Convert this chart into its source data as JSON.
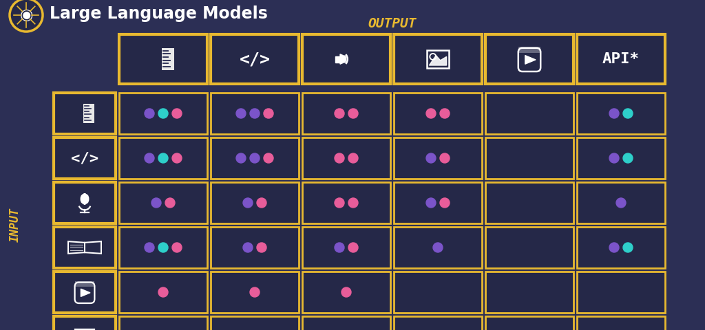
{
  "title": "Large Language Models",
  "output_label": "OUTPUT",
  "input_label": "INPUT",
  "bg_color": "#2c2f55",
  "cell_bg": "#252848",
  "border_color": "#e8b930",
  "title_color": "#ffffff",
  "label_color": "#e8b930",
  "dot_purple": "#7b54c9",
  "dot_pink": "#e85d9a",
  "dot_cyan": "#2ecfca",
  "output_icons": [
    "text",
    "code",
    "audio",
    "image",
    "video",
    "api"
  ],
  "input_icons": [
    "text",
    "code",
    "audio",
    "book",
    "video",
    "image"
  ],
  "grid_rows": 6,
  "grid_cols": 6,
  "dots": {
    "0": {
      "0": [
        "purple",
        "cyan",
        "pink"
      ],
      "1": [
        "purple",
        "purple",
        "pink"
      ],
      "2": [
        "pink",
        "pink"
      ],
      "3": [
        "pink",
        "pink"
      ],
      "4": [],
      "5": [
        "purple",
        "cyan"
      ]
    },
    "1": {
      "0": [
        "purple",
        "cyan",
        "pink"
      ],
      "1": [
        "purple",
        "purple",
        "pink"
      ],
      "2": [
        "pink",
        "pink"
      ],
      "3": [
        "purple",
        "pink"
      ],
      "4": [],
      "5": [
        "purple",
        "cyan"
      ]
    },
    "2": {
      "0": [
        "purple",
        "pink"
      ],
      "1": [
        "purple",
        "pink"
      ],
      "2": [
        "pink",
        "pink"
      ],
      "3": [
        "purple",
        "pink"
      ],
      "4": [],
      "5": [
        "purple"
      ]
    },
    "3": {
      "0": [
        "purple",
        "cyan",
        "pink"
      ],
      "1": [
        "purple",
        "pink"
      ],
      "2": [
        "purple",
        "pink"
      ],
      "3": [
        "purple"
      ],
      "4": [],
      "5": [
        "purple",
        "cyan"
      ]
    },
    "4": {
      "0": [
        "pink"
      ],
      "1": [
        "pink"
      ],
      "2": [
        "pink"
      ],
      "3": [],
      "4": [],
      "5": []
    },
    "5": {
      "0": [
        "purple",
        "cyan",
        "pink"
      ],
      "1": [
        "purple",
        "cyan",
        "pink"
      ],
      "2": [
        "purple",
        "pink"
      ],
      "3": [
        "purple",
        "cyan"
      ],
      "4": [],
      "5": [
        "purple",
        "cyan"
      ]
    }
  },
  "fig_width": 10.24,
  "fig_height": 4.8,
  "dpi": 100
}
